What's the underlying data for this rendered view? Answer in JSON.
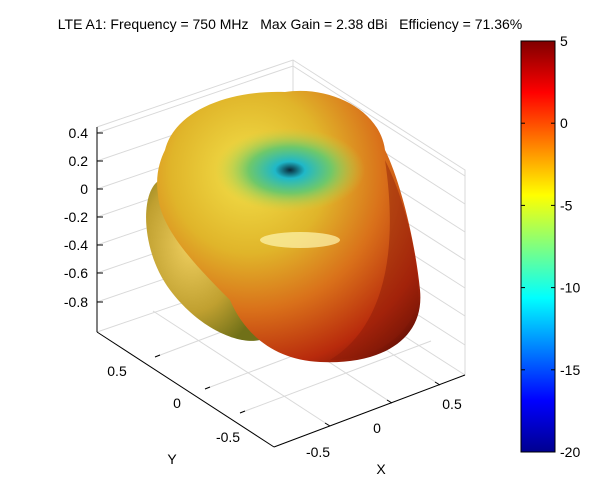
{
  "chart_data": {
    "type": "3d-surface",
    "title": "LTE A1: Frequency = 750 MHz   Max Gain = 2.38 dBi   Efficiency = 71.36%",
    "xlabel": "X",
    "ylabel": "Y",
    "zlabel": "",
    "x_ticks": [
      "-0.5",
      "0",
      "0.5"
    ],
    "y_ticks": [
      "0.5",
      "0",
      "-0.5"
    ],
    "z_ticks": [
      "0.4",
      "0.2",
      "0",
      "-0.2",
      "-0.4",
      "-0.6",
      "-0.8"
    ],
    "colorbar": {
      "range": [
        -20,
        5
      ],
      "ticks": [
        "5",
        "0",
        "-5",
        "-10",
        "-15",
        "-20"
      ],
      "colormap": "jet",
      "colors": [
        "#00008f",
        "#0000ff",
        "#00ffff",
        "#ffff00",
        "#ff0000",
        "#800000"
      ]
    },
    "grid": true
  }
}
